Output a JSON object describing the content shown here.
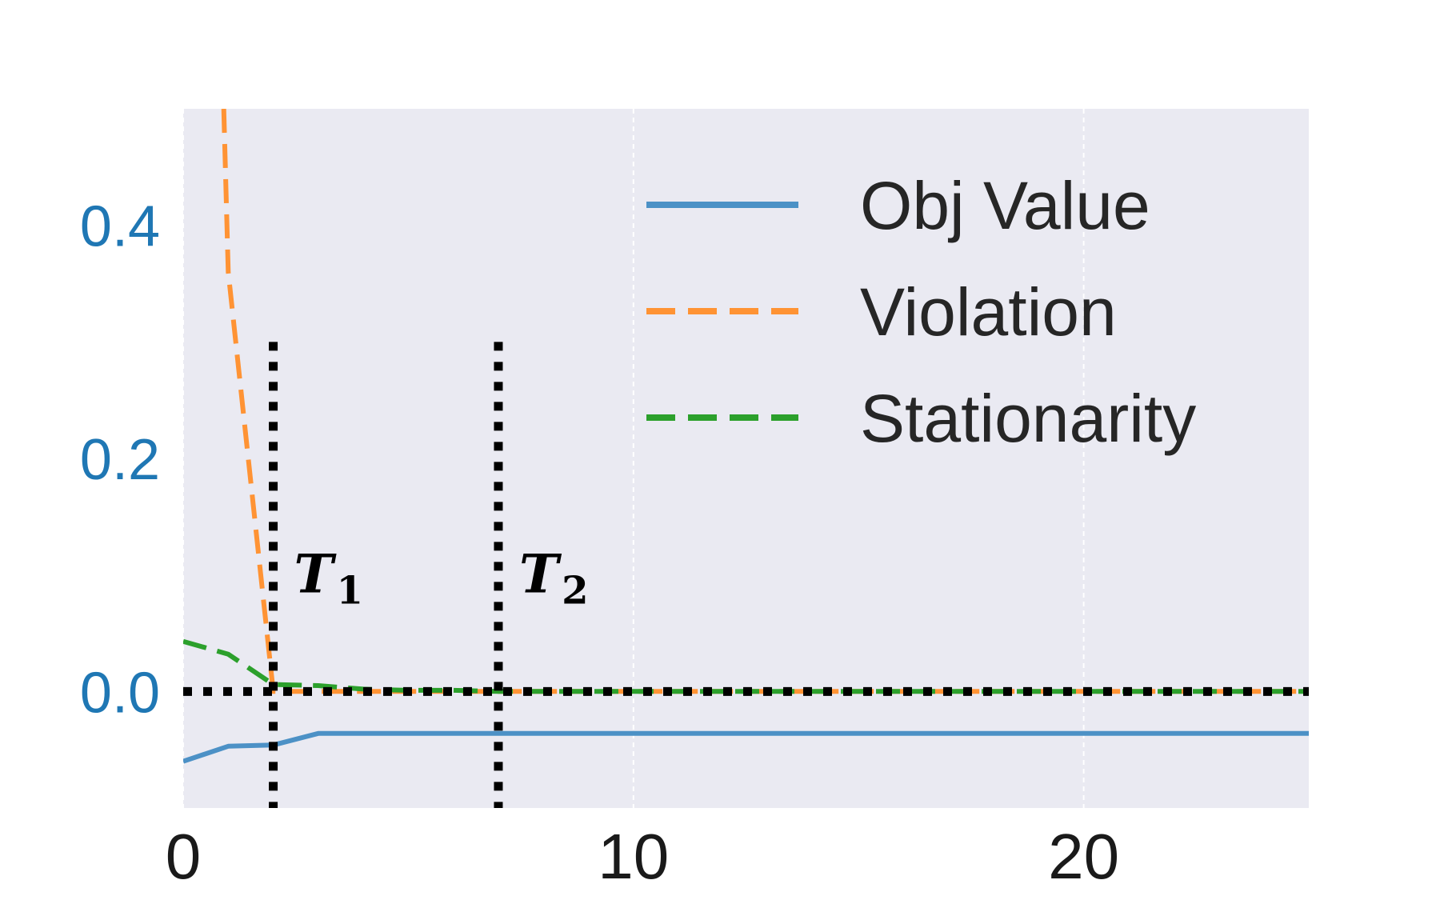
{
  "chart_data": {
    "type": "line",
    "title": "",
    "xlabel": "",
    "ylabel": "",
    "xlim": [
      0,
      25
    ],
    "ylim": [
      -0.1,
      0.5
    ],
    "x_ticks": [
      0,
      10,
      20
    ],
    "y_ticks": [
      0.0,
      0.2,
      0.4
    ],
    "y_tick_labels": [
      "0.0",
      "0.2",
      "0.4"
    ],
    "x_tick_labels": [
      "0",
      "10",
      "20"
    ],
    "grid": true,
    "background": "#eaeaf2",
    "legend_position": "top-right",
    "y_tick_color": "#1f77b4",
    "series": [
      {
        "name": "Obj Value",
        "color": "#4c91c6",
        "style": "solid",
        "x": [
          0,
          1,
          2,
          3,
          4,
          5,
          6,
          7,
          8,
          9,
          10,
          11,
          12,
          13,
          14,
          15,
          16,
          17,
          18,
          19,
          20,
          21,
          22,
          23,
          24,
          25
        ],
        "y": [
          -0.06,
          -0.047,
          -0.046,
          -0.036,
          -0.036,
          -0.036,
          -0.036,
          -0.036,
          -0.036,
          -0.036,
          -0.036,
          -0.036,
          -0.036,
          -0.036,
          -0.036,
          -0.036,
          -0.036,
          -0.036,
          -0.036,
          -0.036,
          -0.036,
          -0.036,
          -0.036,
          -0.036,
          -0.036,
          -0.036
        ]
      },
      {
        "name": "Violation",
        "color": "#ff9334",
        "style": "dashed",
        "x": [
          0.9,
          1.0,
          2.0,
          3,
          4,
          5,
          6,
          7,
          8,
          9,
          10,
          11,
          12,
          13,
          14,
          15,
          16,
          17,
          18,
          19,
          20,
          21,
          22,
          23,
          24,
          25
        ],
        "y": [
          0.5,
          0.36,
          0.0,
          0.0,
          0.0,
          0.0,
          0.0,
          0.0,
          0.0,
          0.0,
          0.0,
          0.0,
          0.0,
          0.0,
          0.0,
          0.0,
          0.0,
          0.0,
          0.0,
          0.0,
          0.0,
          0.0,
          0.0,
          0.0,
          0.0,
          0.0
        ]
      },
      {
        "name": "Stationarity",
        "color": "#2ca02c",
        "style": "dashed",
        "x": [
          0,
          1,
          2,
          3,
          4,
          5,
          6,
          7,
          8,
          9,
          10,
          11,
          12,
          13,
          14,
          15,
          16,
          17,
          18,
          19,
          20,
          21,
          22,
          23,
          24,
          25
        ],
        "y": [
          0.043,
          0.032,
          0.006,
          0.005,
          0.002,
          0.001,
          0.001,
          0.0,
          0.0,
          0.0,
          0.0,
          0.0,
          0.0,
          0.0,
          0.0,
          0.0,
          0.0,
          0.0,
          0.0,
          0.0,
          0.0,
          0.0,
          0.0,
          0.0,
          0.0,
          0.0
        ]
      }
    ],
    "reference_lines": [
      {
        "orientation": "horizontal",
        "y": 0.0,
        "color": "#000000",
        "style": "dotted"
      },
      {
        "orientation": "vertical",
        "x": 2,
        "y_range": [
          -0.1,
          0.3
        ],
        "color": "#000000",
        "style": "dotted",
        "label": "T",
        "subscript": "1"
      },
      {
        "orientation": "vertical",
        "x": 7,
        "y_range": [
          -0.1,
          0.3
        ],
        "color": "#000000",
        "style": "dotted",
        "label": "T",
        "subscript": "2"
      }
    ]
  }
}
